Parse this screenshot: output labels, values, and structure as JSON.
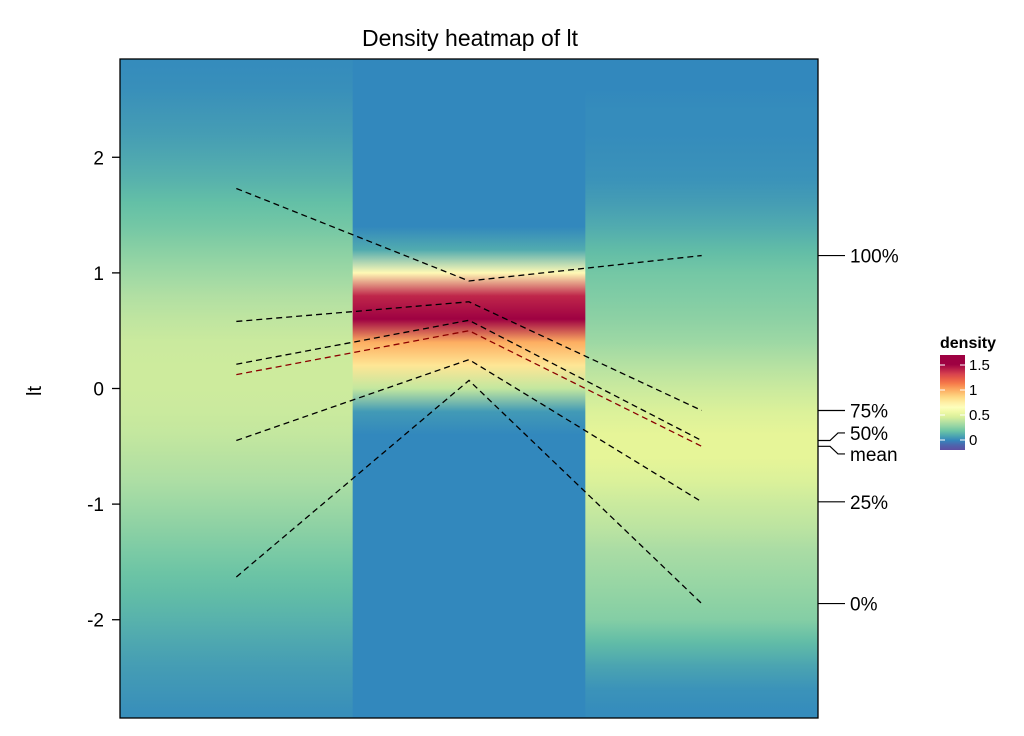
{
  "chart_data": {
    "type": "heatmap",
    "title": "Density heatmap of lt",
    "ylabel": "lt",
    "xlabel": "",
    "ylim": [
      -2.85,
      2.85
    ],
    "yticks": [
      2,
      1,
      0,
      -1,
      -2
    ],
    "grid": false,
    "columns": 3,
    "density_y_grid": [
      -2.8,
      -2.6,
      -2.4,
      -2.2,
      -2.0,
      -1.8,
      -1.6,
      -1.4,
      -1.2,
      -1.0,
      -0.8,
      -0.6,
      -0.4,
      -0.2,
      0,
      0.2,
      0.4,
      0.6,
      0.8,
      1.0,
      1.2,
      1.4,
      1.6,
      1.8,
      2.0,
      2.2,
      2.4,
      2.6,
      2.8
    ],
    "density": [
      [
        0.02,
        0.04,
        0.06,
        0.09,
        0.12,
        0.15,
        0.18,
        0.22,
        0.26,
        0.3,
        0.34,
        0.37,
        0.4,
        0.42,
        0.43,
        0.43,
        0.42,
        0.39,
        0.35,
        0.3,
        0.25,
        0.2,
        0.16,
        0.12,
        0.09,
        0.06,
        0.04,
        0.02,
        0.01
      ],
      [
        0,
        0,
        0,
        0,
        0,
        0,
        0,
        0,
        0,
        0,
        0,
        0,
        0,
        0.05,
        0.4,
        0.8,
        1.0,
        1.5,
        1.4,
        0.7,
        0.1,
        0,
        0,
        0,
        0,
        0,
        0,
        0,
        0
      ],
      [
        0.01,
        0.03,
        0.08,
        0.15,
        0.24,
        0.27,
        0.3,
        0.33,
        0.38,
        0.42,
        0.47,
        0.5,
        0.5,
        0.47,
        0.42,
        0.36,
        0.3,
        0.26,
        0.23,
        0.2,
        0.15,
        0.1,
        0.06,
        0.03,
        0.02,
        0.01,
        0.01,
        0,
        0
      ]
    ],
    "quantile_lines": [
      {
        "name": "100%",
        "values": [
          1.73,
          0.93,
          1.15
        ],
        "color": "#000000"
      },
      {
        "name": "75%",
        "values": [
          0.58,
          0.75,
          -0.19
        ],
        "color": "#000000"
      },
      {
        "name": "50%",
        "values": [
          0.21,
          0.59,
          -0.45
        ],
        "color": "#000000"
      },
      {
        "name": "mean",
        "values": [
          0.12,
          0.5,
          -0.5
        ],
        "color": "#8B0000"
      },
      {
        "name": "25%",
        "values": [
          -0.45,
          0.25,
          -0.98
        ],
        "color": "#000000"
      },
      {
        "name": "0%",
        "values": [
          -1.63,
          0.07,
          -1.86
        ],
        "color": "#000000"
      }
    ],
    "legend": {
      "title": "density",
      "ticks": [
        1.5,
        1,
        0.5,
        0
      ],
      "tick_labels": [
        "1.5",
        "1",
        "0.5",
        "0"
      ],
      "range": [
        -0.167,
        1.5
      ],
      "placement": "right"
    },
    "colors": [
      "#5E4FA2",
      "#3288BD",
      "#66C2A5",
      "#ABDDA4",
      "#E6F598",
      "#FFFFBF",
      "#FEE08B",
      "#FDAE61",
      "#F46D43",
      "#D53E4F",
      "#9E0142"
    ]
  }
}
